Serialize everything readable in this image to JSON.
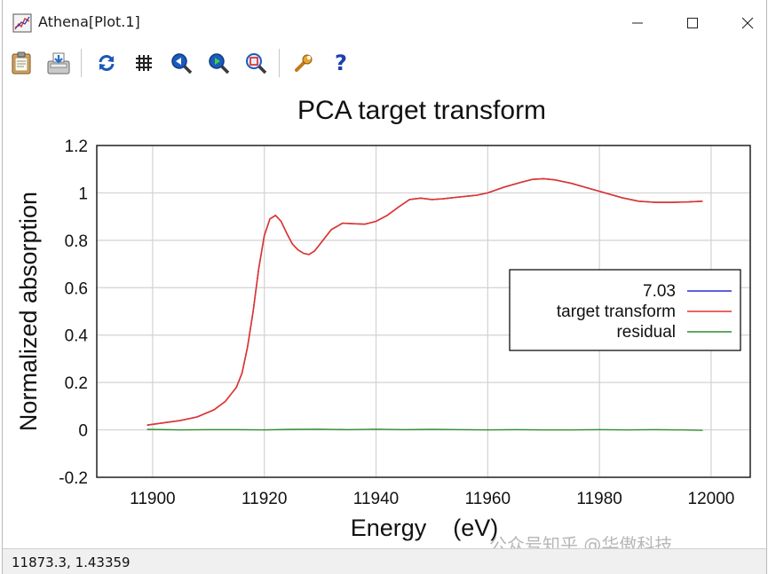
{
  "window": {
    "title": "Athena[Plot.1]"
  },
  "toolbar": {
    "buttons": [
      {
        "name": "copy-to-clipboard-button",
        "icon": "clipboard-icon"
      },
      {
        "name": "save-button",
        "icon": "save-icon"
      },
      {
        "name": "refresh-button",
        "icon": "refresh-icon"
      },
      {
        "name": "grid-button",
        "icon": "grid-icon"
      },
      {
        "name": "zoom-in-button",
        "icon": "zoom-in-icon"
      },
      {
        "name": "zoom-out-button",
        "icon": "zoom-out-icon"
      },
      {
        "name": "zoom-fit-button",
        "icon": "zoom-fit-icon"
      },
      {
        "name": "settings-button",
        "icon": "wrench-icon"
      },
      {
        "name": "help-button",
        "icon": "help-icon"
      }
    ]
  },
  "chart_data": {
    "type": "line",
    "title": "PCA target transform",
    "xlabel": "Energy    (eV)",
    "ylabel": "Normalized absorption",
    "xlim": [
      11890,
      12007
    ],
    "ylim": [
      -0.2,
      1.2
    ],
    "xticks": [
      11900,
      11920,
      11940,
      11960,
      11980,
      12000
    ],
    "yticks": [
      -0.2,
      0,
      0.2,
      0.4,
      0.6,
      0.8,
      1,
      1.2
    ],
    "xtick_labels": [
      "11900",
      "11920",
      "11940",
      "11960",
      "11980",
      "12000"
    ],
    "ytick_labels": [
      "-0.2",
      "0",
      "0.2",
      "0.4",
      "0.6",
      "0.8",
      "1",
      "1.2"
    ],
    "grid": true,
    "legend_position": "right",
    "series": [
      {
        "name": "7.03",
        "color": "#2b2bd6",
        "x": [
          11899,
          11902,
          11905,
          11908,
          11911,
          11913,
          11915,
          11916,
          11917,
          11918,
          11919,
          11920,
          11921,
          11922,
          11923,
          11924,
          11925,
          11926,
          11927,
          11928,
          11929,
          11930,
          11932,
          11934,
          11936,
          11938,
          11940,
          11942,
          11944,
          11946,
          11948,
          11950,
          11952,
          11955,
          11958,
          11960,
          11963,
          11966,
          11968,
          11970,
          11972,
          11975,
          11978,
          11981,
          11984,
          11987,
          11990,
          11993,
          11996,
          11998.5
        ],
        "y": [
          0.02,
          0.03,
          0.04,
          0.055,
          0.085,
          0.12,
          0.18,
          0.24,
          0.35,
          0.5,
          0.68,
          0.82,
          0.89,
          0.905,
          0.88,
          0.83,
          0.785,
          0.76,
          0.745,
          0.74,
          0.755,
          0.785,
          0.845,
          0.872,
          0.87,
          0.868,
          0.88,
          0.905,
          0.94,
          0.972,
          0.978,
          0.972,
          0.975,
          0.983,
          0.99,
          1.0,
          1.025,
          1.045,
          1.057,
          1.06,
          1.055,
          1.04,
          1.02,
          1.0,
          0.98,
          0.965,
          0.96,
          0.96,
          0.962,
          0.965
        ]
      },
      {
        "name": "target transform",
        "color": "#e0342c",
        "x": [
          11899,
          11902,
          11905,
          11908,
          11911,
          11913,
          11915,
          11916,
          11917,
          11918,
          11919,
          11920,
          11921,
          11922,
          11923,
          11924,
          11925,
          11926,
          11927,
          11928,
          11929,
          11930,
          11932,
          11934,
          11936,
          11938,
          11940,
          11942,
          11944,
          11946,
          11948,
          11950,
          11952,
          11955,
          11958,
          11960,
          11963,
          11966,
          11968,
          11970,
          11972,
          11975,
          11978,
          11981,
          11984,
          11987,
          11990,
          11993,
          11996,
          11998.5
        ],
        "y": [
          0.02,
          0.03,
          0.04,
          0.055,
          0.085,
          0.12,
          0.18,
          0.24,
          0.35,
          0.5,
          0.68,
          0.82,
          0.89,
          0.905,
          0.88,
          0.83,
          0.785,
          0.76,
          0.745,
          0.74,
          0.755,
          0.785,
          0.845,
          0.872,
          0.87,
          0.868,
          0.88,
          0.905,
          0.94,
          0.972,
          0.978,
          0.972,
          0.975,
          0.983,
          0.99,
          1.0,
          1.025,
          1.045,
          1.057,
          1.06,
          1.055,
          1.04,
          1.02,
          1.0,
          0.98,
          0.965,
          0.96,
          0.96,
          0.962,
          0.965
        ]
      },
      {
        "name": "residual",
        "color": "#2e8b2e",
        "x": [
          11899,
          11905,
          11910,
          11915,
          11920,
          11925,
          11930,
          11935,
          11940,
          11945,
          11950,
          11955,
          11960,
          11965,
          11970,
          11975,
          11980,
          11985,
          11990,
          11995,
          11998.5
        ],
        "y": [
          0.002,
          0.0,
          0.001,
          0.001,
          0.0,
          0.002,
          0.003,
          0.001,
          0.003,
          0.001,
          0.002,
          0.001,
          0.0,
          0.001,
          0.0,
          0.0,
          0.001,
          0.0,
          0.001,
          0.0,
          -0.002
        ]
      }
    ]
  },
  "statusbar": {
    "coords": "11873.3,   1.43359"
  },
  "watermark": {
    "text": "公众号知乎 @华傲科技"
  }
}
